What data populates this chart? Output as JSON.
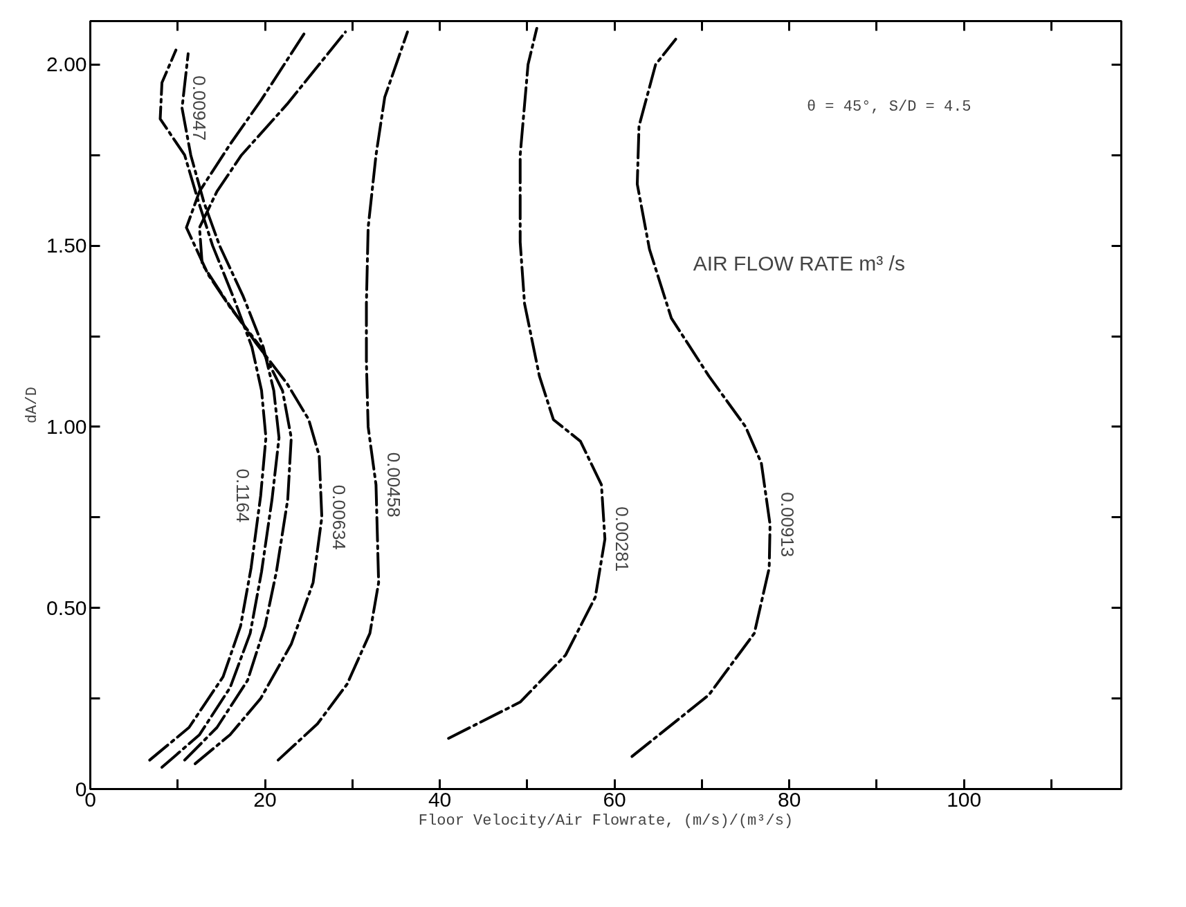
{
  "chart_data": {
    "type": "line",
    "xlabel": "Floor Velocity/Air Flowrate, (m/s)/(m³/s)",
    "ylabel": "dA/D",
    "annotations": [
      "θ = 45°, S/D = 4.5",
      "AIR FLOW RATE m³ /s"
    ],
    "line_style": "dashed",
    "grid": false,
    "xlim": [
      0,
      118
    ],
    "ylim": [
      0,
      2.12
    ],
    "xticks": [
      0,
      {
        "value": 10,
        "label": null
      },
      20,
      {
        "value": 30,
        "label": null
      },
      40,
      {
        "value": 50,
        "label": null
      },
      60,
      {
        "value": 70,
        "label": null
      },
      80,
      {
        "value": 90,
        "label": null
      },
      100,
      {
        "value": 110,
        "label": null
      }
    ],
    "yticks": [
      0,
      {
        "value": 0.25,
        "label": null
      },
      {
        "value": 0.5,
        "label": "0.50"
      },
      {
        "value": 0.75,
        "label": null
      },
      {
        "value": 1.0,
        "label": "1.00"
      },
      {
        "value": 1.25,
        "label": null
      },
      {
        "value": 1.5,
        "label": "1.50"
      },
      {
        "value": 1.75,
        "label": null
      },
      {
        "value": 2.0,
        "label": "2.00"
      }
    ],
    "series": [
      {
        "name": "0.1164",
        "color": "#000000",
        "x": [
          6.8,
          11.3,
          15.2,
          17.2,
          18.4,
          19.5,
          20.1,
          19.6,
          18.5,
          16.5,
          14,
          12.4,
          10.8,
          8.0,
          8.2,
          9.8
        ],
        "values": [
          0.08,
          0.17,
          0.31,
          0.45,
          0.61,
          0.81,
          0.97,
          1.1,
          1.22,
          1.35,
          1.5,
          1.62,
          1.75,
          1.85,
          1.95,
          2.04
        ]
      },
      {
        "name": "0.00947",
        "color": "#000000",
        "x": [
          8.2,
          12.5,
          16,
          18.3,
          19.6,
          20.8,
          21.6,
          21,
          19.8,
          17.5,
          14.8,
          13,
          11.5,
          10.5,
          11.2
        ],
        "values": [
          0.06,
          0.15,
          0.28,
          0.43,
          0.6,
          0.8,
          0.97,
          1.1,
          1.22,
          1.36,
          1.5,
          1.62,
          1.75,
          1.88,
          2.03
        ]
      },
      {
        "color": "#000000",
        "x": [
          10.8,
          14.5,
          18,
          20,
          21.3,
          22.6,
          23,
          22,
          19.5,
          16,
          13.5,
          11,
          12.5,
          16,
          19.5,
          24.6
        ],
        "values": [
          0.08,
          0.17,
          0.3,
          0.45,
          0.6,
          0.8,
          0.97,
          1.1,
          1.22,
          1.33,
          1.42,
          1.55,
          1.65,
          1.78,
          1.9,
          2.09
        ]
      },
      {
        "name": "0.00634",
        "color": "#000000",
        "x": [
          12,
          16,
          19.5,
          23,
          25.5,
          26.5,
          26.2,
          25,
          22.5,
          19,
          15.5,
          12.8,
          12.5,
          14.5,
          17.3,
          22.5,
          29.2
        ],
        "values": [
          0.07,
          0.15,
          0.25,
          0.4,
          0.57,
          0.75,
          0.92,
          1.02,
          1.12,
          1.23,
          1.35,
          1.45,
          1.55,
          1.65,
          1.75,
          1.89,
          2.09
        ]
      },
      {
        "name": "0.00458",
        "color": "#000000",
        "x": [
          21.5,
          26,
          29.4,
          32,
          33,
          32.7,
          31.8,
          31.6,
          31.6,
          31.8,
          32.7,
          33.7,
          36.3
        ],
        "values": [
          0.08,
          0.18,
          0.29,
          0.43,
          0.57,
          0.84,
          1.0,
          1.18,
          1.34,
          1.55,
          1.75,
          1.91,
          2.09
        ]
      },
      {
        "name": "0.00281",
        "color": "#000000",
        "x": [
          41,
          49.2,
          54.4,
          57.8,
          58.9,
          58.5,
          56.1,
          53,
          51.4,
          49.7,
          49.2,
          49.2,
          50.1,
          51.1
        ],
        "values": [
          0.14,
          0.24,
          0.37,
          0.53,
          0.69,
          0.84,
          0.96,
          1.02,
          1.14,
          1.34,
          1.51,
          1.75,
          2.0,
          2.1
        ]
      },
      {
        "name": "0.00913",
        "color": "#000000",
        "x": [
          62,
          70.8,
          76,
          77.7,
          77.8,
          76.8,
          75,
          70.8,
          66.5,
          64,
          62.6,
          62.8,
          64.7,
          67
        ],
        "values": [
          0.09,
          0.26,
          0.43,
          0.61,
          0.73,
          0.9,
          1.0,
          1.14,
          1.3,
          1.49,
          1.67,
          1.83,
          2.0,
          2.07
        ]
      }
    ]
  }
}
